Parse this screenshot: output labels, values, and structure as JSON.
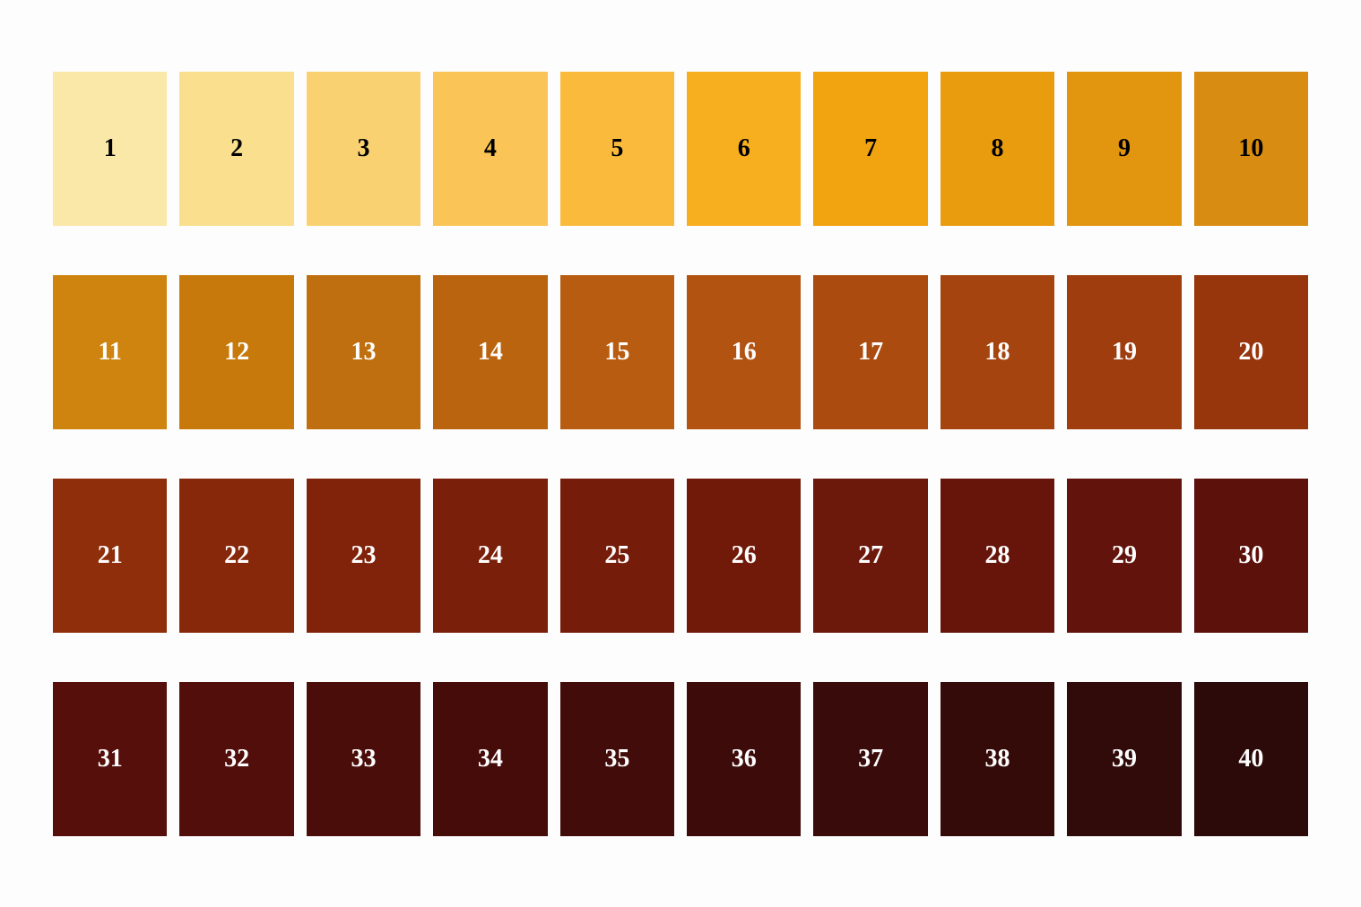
{
  "chart": {
    "type": "color-swatch-grid",
    "background_color": "#fdfdfd",
    "columns": 10,
    "rows": 4,
    "swatch_height": 172,
    "row_gap": 55,
    "col_gap": 14,
    "label_fontsize": 28,
    "label_fontweight": "bold",
    "label_fontfamily": "Georgia, 'Times New Roman', serif",
    "swatches": [
      {
        "label": "1",
        "color": "#fae8a9",
        "text_color": "#000000"
      },
      {
        "label": "2",
        "color": "#fadf8f",
        "text_color": "#000000"
      },
      {
        "label": "3",
        "color": "#fad171",
        "text_color": "#000000"
      },
      {
        "label": "4",
        "color": "#fac556",
        "text_color": "#000000"
      },
      {
        "label": "5",
        "color": "#fabb3c",
        "text_color": "#000000"
      },
      {
        "label": "6",
        "color": "#f7af1f",
        "text_color": "#000000"
      },
      {
        "label": "7",
        "color": "#f1a40f",
        "text_color": "#000000"
      },
      {
        "label": "8",
        "color": "#e99c0e",
        "text_color": "#000000"
      },
      {
        "label": "9",
        "color": "#e2950f",
        "text_color": "#000000"
      },
      {
        "label": "10",
        "color": "#d88c11",
        "text_color": "#000000"
      },
      {
        "label": "11",
        "color": "#cf840f",
        "text_color": "#ffffff"
      },
      {
        "label": "12",
        "color": "#c77a0b",
        "text_color": "#ffffff"
      },
      {
        "label": "13",
        "color": "#bf6f0f",
        "text_color": "#ffffff"
      },
      {
        "label": "14",
        "color": "#bb6410",
        "text_color": "#ffffff"
      },
      {
        "label": "15",
        "color": "#b85c11",
        "text_color": "#ffffff"
      },
      {
        "label": "16",
        "color": "#b25311",
        "text_color": "#ffffff"
      },
      {
        "label": "17",
        "color": "#ac4b10",
        "text_color": "#ffffff"
      },
      {
        "label": "18",
        "color": "#a6440f",
        "text_color": "#ffffff"
      },
      {
        "label": "19",
        "color": "#9f3d0e",
        "text_color": "#ffffff"
      },
      {
        "label": "20",
        "color": "#97350c",
        "text_color": "#ffffff"
      },
      {
        "label": "21",
        "color": "#8e2e0b",
        "text_color": "#ffffff"
      },
      {
        "label": "22",
        "color": "#87280a",
        "text_color": "#ffffff"
      },
      {
        "label": "23",
        "color": "#80230a",
        "text_color": "#ffffff"
      },
      {
        "label": "24",
        "color": "#7a1f0a",
        "text_color": "#ffffff"
      },
      {
        "label": "25",
        "color": "#751c0a",
        "text_color": "#ffffff"
      },
      {
        "label": "26",
        "color": "#711a0a",
        "text_color": "#ffffff"
      },
      {
        "label": "27",
        "color": "#6c180b",
        "text_color": "#ffffff"
      },
      {
        "label": "28",
        "color": "#67150b",
        "text_color": "#ffffff"
      },
      {
        "label": "29",
        "color": "#62130b",
        "text_color": "#ffffff"
      },
      {
        "label": "30",
        "color": "#5c110b",
        "text_color": "#ffffff"
      },
      {
        "label": "31",
        "color": "#560f0b",
        "text_color": "#ffffff"
      },
      {
        "label": "32",
        "color": "#510e0a",
        "text_color": "#ffffff"
      },
      {
        "label": "33",
        "color": "#4b0d0a",
        "text_color": "#ffffff"
      },
      {
        "label": "34",
        "color": "#460c0a",
        "text_color": "#ffffff"
      },
      {
        "label": "35",
        "color": "#420c0a",
        "text_color": "#ffffff"
      },
      {
        "label": "36",
        "color": "#3d0c0a",
        "text_color": "#ffffff"
      },
      {
        "label": "37",
        "color": "#390b0a",
        "text_color": "#ffffff"
      },
      {
        "label": "38",
        "color": "#350b0a",
        "text_color": "#ffffff"
      },
      {
        "label": "39",
        "color": "#310b0a",
        "text_color": "#ffffff"
      },
      {
        "label": "40",
        "color": "#2c0a09",
        "text_color": "#ffffff"
      }
    ]
  }
}
